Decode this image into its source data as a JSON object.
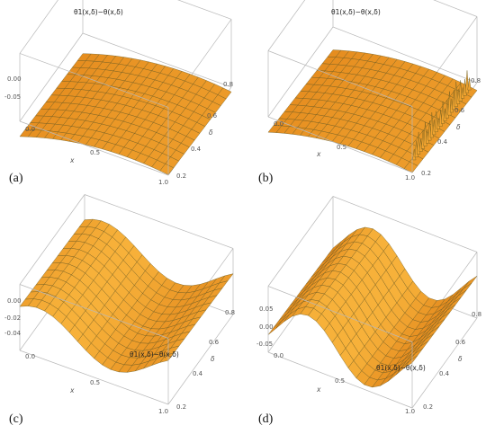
{
  "chart_data": [
    {
      "type": "surface",
      "panel": "(a)",
      "zlabel": "θ1(x,δ)−θ(x,δ)",
      "xlabel": "x",
      "ylabel": "δ",
      "x_ticks": [
        "0.0",
        "0.5",
        "1.0"
      ],
      "y_ticks": [
        "0.2",
        "0.4",
        "0.6",
        "0.8"
      ],
      "z_ticks": [
        "0.00",
        "-0.05"
      ],
      "xlim": [
        0,
        1
      ],
      "ylim": [
        0.2,
        0.9
      ],
      "zlim": [
        -0.1,
        0.02
      ],
      "shape": "parabolic-hump"
    },
    {
      "type": "surface",
      "panel": "(b)",
      "zlabel": "θ1(x,δ)−θ(x,δ)",
      "xlabel": "x",
      "ylabel": "δ",
      "x_ticks": [
        "0.0",
        "0.5",
        "1.0"
      ],
      "y_ticks": [
        "0.2",
        "0.4",
        "0.6",
        "0.8"
      ],
      "z_ticks": [],
      "xlim": [
        0,
        1
      ],
      "ylim": [
        0.2,
        0.9
      ],
      "zlim": [
        -0.1,
        0.05
      ],
      "shape": "hump-with-spikes"
    },
    {
      "type": "surface",
      "panel": "(c)",
      "zlabel": "θ1(x,δ)−θ(x,δ)",
      "xlabel": "x",
      "ylabel": "δ",
      "x_ticks": [
        "0.0",
        "0.5",
        "1.0"
      ],
      "y_ticks": [
        "0.2",
        "0.4",
        "0.6",
        "0.8"
      ],
      "z_ticks": [
        "0.00",
        "-0.02",
        "-0.04"
      ],
      "xlim": [
        0,
        1
      ],
      "ylim": [
        0.2,
        0.9
      ],
      "zlim": [
        -0.05,
        0.01
      ],
      "shape": "wave"
    },
    {
      "type": "surface",
      "panel": "(d)",
      "zlabel": "θ1(x,δ)−θ(x,δ)",
      "xlabel": "x",
      "ylabel": "δ",
      "x_ticks": [
        "0.0",
        "0.5",
        "1.0"
      ],
      "y_ticks": [
        "0.2",
        "0.4",
        "0.6",
        "0.8"
      ],
      "z_ticks": [
        "0.05",
        "0.00",
        "-0.05"
      ],
      "xlim": [
        0,
        1
      ],
      "ylim": [
        0.2,
        0.9
      ],
      "zlim": [
        -0.08,
        0.08
      ],
      "shape": "valley-ridge"
    }
  ],
  "colors": {
    "surface_top": "#f7b13a",
    "surface_low": "#e2861a",
    "mesh": "#6b5a1e",
    "edge_fringe": "#9ab84a",
    "box": "#b8b8b8"
  }
}
